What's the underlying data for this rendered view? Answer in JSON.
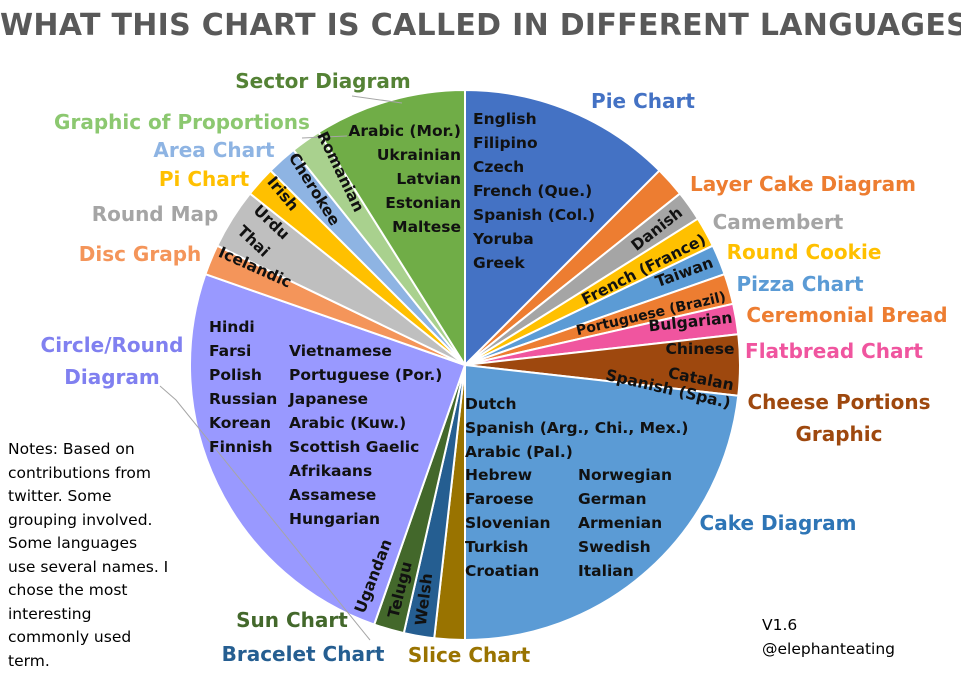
{
  "title": "WHAT THIS CHART IS CALLED IN DIFFERENT LANGUAGES",
  "notes": [
    "Notes: Based on",
    "contributions from",
    "twitter. Some",
    "grouping involved.",
    "Some languages",
    "use several names. I",
    "chose the most",
    "interesting",
    "commonly used",
    "term."
  ],
  "version": "V1.6",
  "credit": "@elephanteating",
  "chart_data": {
    "type": "pie",
    "title": "WHAT THIS CHART IS CALLED IN DIFFERENT LANGUAGES",
    "unit": "number of languages",
    "slices": [
      {
        "name": "Pie Chart",
        "languages": [
          "English",
          "Filipino",
          "Czech",
          "French (Que.)",
          "Spanish (Col.)",
          "Yoruba",
          "Greek"
        ],
        "value": 7,
        "color": "#4472C4",
        "text_color": "#4472C4"
      },
      {
        "name": "Layer Cake Diagram",
        "languages": [
          "Danish"
        ],
        "value": 1,
        "color": "#ED7D31",
        "text_color": "#ED7D31"
      },
      {
        "name": "Camembert",
        "languages": [
          "French (France)"
        ],
        "value": 1,
        "color": "#A5A5A5",
        "text_color": "#A5A5A5"
      },
      {
        "name": "Round Cookie",
        "languages": [
          "Taiwan"
        ],
        "value": 1,
        "color": "#FFC000",
        "text_color": "#FFC000"
      },
      {
        "name": "Pizza Chart",
        "languages": [
          "Portuguese (Brazil)"
        ],
        "value": 1,
        "color": "#5B9BD5",
        "text_color": "#5B9BD5"
      },
      {
        "name": "Ceremonial Bread",
        "languages": [
          "Bulgarian"
        ],
        "value": 1,
        "color": "#ED7D31",
        "text_color": "#ED7D31"
      },
      {
        "name": "Flatbread Chart",
        "languages": [
          "Chinese"
        ],
        "value": 1,
        "color": "#F0559F",
        "text_color": "#F0559F"
      },
      {
        "name": "Cheese Portions Graphic",
        "languages": [
          "Catalan",
          "Spanish (Spa.)"
        ],
        "value": 2,
        "color": "#9E480E",
        "text_color": "#9E480E"
      },
      {
        "name": "Cake Diagram",
        "languages": [
          "Dutch",
          "Spanish (Arg., Chi., Mex.)",
          "Arabic (Pal.)",
          "Hebrew",
          "Faroese",
          "Slovenian",
          "Turkish",
          "Croatian",
          "Norwegian",
          "German",
          "Armenian",
          "Swedish",
          "Italian"
        ],
        "value": 13,
        "color": "#5B9BD5",
        "text_color": "#2E75B6"
      },
      {
        "name": "Slice Chart",
        "languages": [
          "Welsh"
        ],
        "value": 1,
        "color": "#997300",
        "text_color": "#997300"
      },
      {
        "name": "Bracelet Chart",
        "languages": [
          "Telugu"
        ],
        "value": 1,
        "color": "#255E91",
        "text_color": "#255E91"
      },
      {
        "name": "Sun Chart",
        "languages": [
          "Ugandan"
        ],
        "value": 1,
        "color": "#43682B",
        "text_color": "#43682B"
      },
      {
        "name": "Circle/Round Diagram",
        "languages": [
          "Hindi",
          "Farsi",
          "Polish",
          "Russian",
          "Korean",
          "Finnish",
          "Vietnamese",
          "Portuguese (Por.)",
          "Japanese",
          "Arabic (Kuw.)",
          "Scottish Gaelic",
          "Afrikaans",
          "Assamese",
          "Hungarian"
        ],
        "value": 14,
        "color": "#9999FF",
        "text_color": "#8080F0"
      },
      {
        "name": "Disc Graph",
        "languages": [
          "Icelandic"
        ],
        "value": 1,
        "color": "#F4955A",
        "text_color": "#F4955A"
      },
      {
        "name": "Round Map",
        "languages": [
          "Urdu",
          "Thai"
        ],
        "value": 2,
        "color": "#BFBFBF",
        "text_color": "#A5A5A5"
      },
      {
        "name": "Pi Chart",
        "languages": [
          "Irish"
        ],
        "value": 1,
        "color": "#FFC000",
        "text_color": "#FFC000"
      },
      {
        "name": "Area Chart",
        "languages": [
          "Cherokee"
        ],
        "value": 1,
        "color": "#8EB4E3",
        "text_color": "#8EB4E3"
      },
      {
        "name": "Graphic of Proportions",
        "languages": [
          "Romanian"
        ],
        "value": 1,
        "color": "#A9D18E",
        "text_color": "#8CC870"
      },
      {
        "name": "Sector Diagram",
        "languages": [
          "Arabic (Mor.)",
          "Ukrainian",
          "Latvian",
          "Estonian",
          "Maltese"
        ],
        "value": 5,
        "color": "#70AD47",
        "text_color": "#548235"
      }
    ]
  }
}
